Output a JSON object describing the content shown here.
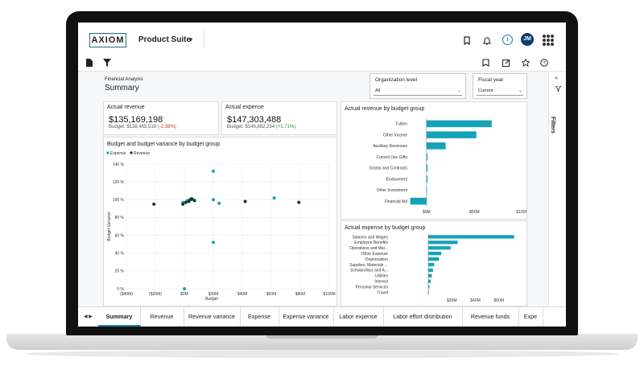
{
  "app": {
    "logo": "AXIOM",
    "suite_name": "Product Suite",
    "user_initials": "JM"
  },
  "page": {
    "breadcrumb": "Financial Analysis",
    "title": "Summary"
  },
  "filters": {
    "organization_level": {
      "label": "Organization level",
      "value": "All"
    },
    "fiscal_year": {
      "label": "Fiscal year",
      "value": "Current"
    },
    "panel_label": "Filters"
  },
  "kpis": {
    "revenue": {
      "title": "Actual revenue",
      "value": "$135,169,198",
      "budget": "Budget: $138,465,519",
      "variance": "(-2.38%)"
    },
    "expense": {
      "title": "Actual expense",
      "value": "$147,303,488",
      "budget": "Budget: $149,862,234",
      "variance": "(+1.71%)"
    }
  },
  "colors": {
    "teal": "#16a2b8",
    "dark_green": "#0d3b2e",
    "expense_dot": "#17a6a6",
    "negative": "#c0392b",
    "positive": "#2e8b3a",
    "active_tab": "#1c8da0"
  },
  "tabs": [
    "Summary",
    "Revenue",
    "Revenue variance",
    "Expense",
    "Expense variance",
    "Labor expense",
    "Labor effort distribution",
    "Revenue funds",
    "Expe"
  ],
  "chart_data": [
    {
      "type": "scatter",
      "title": "Budget and budget variance by budget group",
      "xlabel": "Budget",
      "ylabel": "Budget Variance",
      "x_tick_labels": [
        "($40M)",
        "($20M)",
        "$0M",
        "$20M",
        "$40M",
        "$60M",
        "$80M",
        "$100M"
      ],
      "y_tick_labels": [
        "0 %",
        "20 %",
        "40 %",
        "60 %",
        "80 %",
        "100 %",
        "120 %",
        "140 %"
      ],
      "xlim": [
        -40,
        100
      ],
      "ylim": [
        0,
        140
      ],
      "legend_position": "top-left",
      "series": [
        {
          "name": "Expense",
          "points": [
            [
              20,
              132
            ],
            [
              20,
              52
            ],
            [
              0,
              0
            ],
            [
              24,
              96
            ],
            [
              -1,
              97
            ],
            [
              2,
              99
            ],
            [
              6,
              100
            ],
            [
              20,
              100
            ],
            [
              62,
              102
            ]
          ]
        },
        {
          "name": "Revenue",
          "points": [
            [
              -21,
              95
            ],
            [
              -1,
              95
            ],
            [
              1,
              97
            ],
            [
              3,
              98
            ],
            [
              4,
              100
            ],
            [
              5,
              101
            ],
            [
              7,
              99
            ],
            [
              42,
              98
            ],
            [
              79,
              97
            ]
          ]
        }
      ]
    },
    {
      "type": "bar",
      "orientation": "horizontal",
      "title": "Actual revenue by budget group",
      "categories": [
        "Tuition",
        "Other Income",
        "Auxiliary Revenues",
        "Current Use Gifts",
        "Grants and Contracts",
        "Endowment",
        "Other Investment",
        "Financial Aid"
      ],
      "values": [
        68,
        52,
        20,
        1,
        1,
        1,
        0.5,
        -17
      ],
      "x_tick_labels": [
        "$0M",
        "$50M",
        "$100M"
      ],
      "xlim": [
        -20,
        100
      ]
    },
    {
      "type": "bar",
      "orientation": "horizontal",
      "title": "Actual expense by budget group",
      "categories": [
        "Salaries and Wages",
        "Employee Benefits",
        "Operations and Mai...",
        "Other Expense",
        "Depreciation",
        "Supplies, Materials ...",
        "Scholarships and A...",
        "Utilities",
        "Interest",
        "Personal Services",
        "Travel"
      ],
      "values": [
        73,
        25,
        19,
        11,
        9,
        5,
        4,
        3,
        2,
        1,
        0.5
      ],
      "x_tick_labels": [
        "$20M",
        "$40M",
        "$60M"
      ],
      "xlim": [
        0,
        80
      ]
    }
  ]
}
